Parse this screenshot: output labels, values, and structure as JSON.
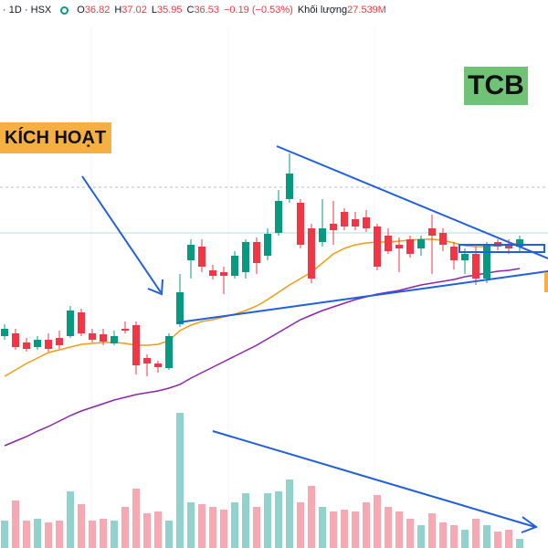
{
  "chart_data": {
    "type": "candlestick",
    "header": {
      "interval": "1D",
      "exchange": "HSX",
      "o_label": "O",
      "o": "36.82",
      "h_label": "H",
      "h": "37.02",
      "l_label": "L",
      "l": "35.95",
      "c_label": "C",
      "c": "36.53",
      "change": "−0.19 (−0.53%)",
      "volume_label": "Khối lượng",
      "volume": "27.539M"
    },
    "symbol": "TCB",
    "annotation": "KÍCH HOẠT",
    "up_color": "#089981",
    "down_color": "#f23645",
    "up_volume_color": "#92d2cc",
    "down_volume_color": "#f7a9b3",
    "ylim": [
      19.75,
      49.75
    ],
    "vlim": [
      0,
      450
    ],
    "open": [
      31.35,
      31.5,
      31.0,
      30.75,
      31.15,
      31.25,
      31.35,
      32.65,
      31.5,
      31.45,
      30.95,
      31.75,
      31.95,
      30.15,
      29.85,
      29.6,
      32.0,
      35.5,
      36.25,
      34.95,
      34.85,
      34.65,
      34.85,
      36.5,
      35.75,
      37.0,
      38.85,
      38.65,
      37.25,
      36.5,
      37.5,
      38.15,
      37.75,
      37.85,
      37.35,
      36.85,
      36.35,
      36.65,
      36.15,
      37.25,
      37.0,
      36.25,
      35.5,
      35.85,
      34.5,
      36.5,
      36.35,
      36.25
    ],
    "high": [
      32.0,
      31.75,
      31.25,
      31.35,
      31.5,
      31.65,
      33.0,
      32.85,
      31.75,
      31.75,
      31.65,
      32.15,
      32.15,
      30.35,
      30.0,
      31.5,
      34.75,
      36.65,
      36.65,
      35.25,
      35.15,
      36.0,
      36.65,
      36.75,
      37.25,
      39.35,
      41.35,
      38.85,
      37.5,
      38.85,
      38.75,
      38.35,
      38.15,
      38.25,
      37.5,
      37.25,
      36.75,
      36.85,
      36.85,
      38.0,
      37.25,
      36.5,
      36.15,
      36.25,
      36.5,
      36.65,
      36.65,
      36.85
    ],
    "low": [
      31.15,
      30.6,
      30.5,
      30.6,
      30.5,
      30.65,
      31.25,
      31.35,
      31.0,
      30.85,
      30.85,
      31.5,
      29.25,
      29.15,
      29.35,
      29.5,
      31.85,
      34.5,
      34.85,
      34.45,
      33.65,
      34.5,
      34.5,
      34.75,
      35.5,
      36.85,
      38.65,
      36.15,
      34.25,
      36.25,
      36.35,
      37.15,
      37.15,
      37.05,
      34.95,
      35.85,
      34.85,
      35.65,
      35.75,
      34.75,
      36.0,
      35.0,
      34.75,
      34.15,
      34.25,
      36.05,
      35.85,
      36.0
    ],
    "close": [
      31.75,
      30.75,
      30.65,
      31.15,
      30.65,
      30.85,
      32.75,
      31.5,
      31.15,
      31.05,
      31.35,
      31.65,
      29.75,
      29.85,
      29.65,
      31.35,
      33.75,
      36.35,
      35.15,
      34.65,
      34.65,
      35.75,
      36.5,
      35.35,
      36.95,
      38.75,
      40.25,
      36.35,
      34.5,
      37.25,
      37.15,
      37.35,
      37.35,
      37.25,
      35.15,
      36.0,
      36.15,
      35.85,
      36.65,
      36.85,
      36.35,
      35.5,
      35.85,
      34.5,
      36.35,
      36.25,
      36.15,
      36.65
    ],
    "volume": [
      90,
      156,
      90,
      96,
      84,
      90,
      186,
      144,
      90,
      96,
      90,
      135,
      195,
      114,
      120,
      90,
      444,
      150,
      144,
      135,
      126,
      150,
      180,
      135,
      180,
      186,
      225,
      150,
      204,
      135,
      120,
      126,
      120,
      150,
      174,
      135,
      120,
      96,
      75,
      114,
      84,
      75,
      60,
      96,
      75,
      54,
      60,
      30
    ],
    "ma": [
      {
        "color": "#f39c12",
        "values": [
          29.15,
          29.5,
          29.85,
          30.15,
          30.45,
          30.6,
          30.75,
          30.9,
          30.95,
          31.0,
          31.0,
          30.95,
          30.85,
          30.85,
          30.9,
          31.1,
          31.65,
          31.95,
          32.15,
          32.25,
          32.4,
          32.55,
          32.75,
          33.0,
          33.35,
          33.75,
          34.15,
          34.5,
          34.85,
          35.35,
          35.85,
          36.15,
          36.35,
          36.45,
          36.5,
          36.5,
          36.55,
          36.6,
          36.65,
          36.65,
          36.6,
          36.45,
          36.3,
          36.25,
          36.25,
          36.3,
          36.35,
          36.45
        ]
      },
      {
        "color": "#8e24aa",
        "values": [
          25.35,
          25.6,
          25.85,
          26.15,
          26.4,
          26.7,
          27.0,
          27.25,
          27.45,
          27.65,
          27.85,
          28.0,
          28.15,
          28.25,
          28.35,
          28.5,
          28.7,
          29.05,
          29.35,
          29.65,
          29.95,
          30.25,
          30.55,
          30.85,
          31.2,
          31.55,
          31.9,
          32.25,
          32.5,
          32.75,
          32.95,
          33.15,
          33.35,
          33.5,
          33.65,
          33.75,
          33.85,
          34.0,
          34.15,
          34.25,
          34.35,
          34.45,
          34.6,
          34.7,
          34.8,
          34.9,
          34.95,
          35.05
        ]
      }
    ]
  }
}
